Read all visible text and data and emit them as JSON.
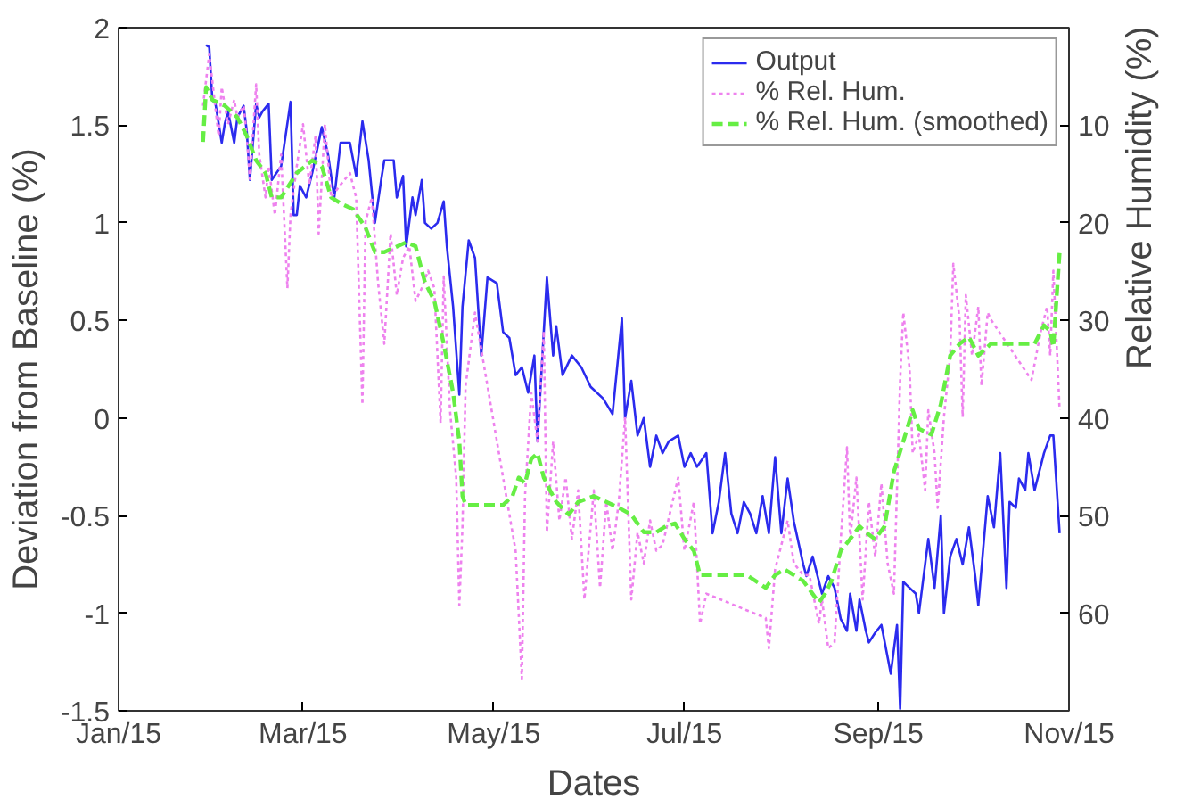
{
  "chart_data": {
    "type": "line",
    "xlabel": "Dates",
    "ylabel": "Deviation from Baseline (%)",
    "y2label": "Relative Humidity (%)",
    "xlim": [
      "2015-01-01",
      "2015-11-01"
    ],
    "xticks": [
      {
        "value": "2015-01-01",
        "label": "Jan/15"
      },
      {
        "value": "2015-03-01",
        "label": "Mar/15"
      },
      {
        "value": "2015-05-01",
        "label": "May/15"
      },
      {
        "value": "2015-07-01",
        "label": "Jul/15"
      },
      {
        "value": "2015-09-01",
        "label": "Sep/15"
      },
      {
        "value": "2015-11-01",
        "label": "Nov/15"
      }
    ],
    "ylim": [
      -1.5,
      2
    ],
    "yticks": [
      -1.5,
      -1,
      -0.5,
      0,
      0.5,
      1,
      1.5,
      2
    ],
    "y2lim": [
      70,
      0
    ],
    "y2ticks": [
      10,
      20,
      30,
      40,
      50,
      60
    ],
    "grid": false,
    "legend": "top right",
    "series": [
      {
        "name": "Output",
        "color": "#2b2bee",
        "line_style": "solid",
        "x": [
          "2015-01-29",
          "2015-01-30",
          "2015-01-31",
          "2015-02-01",
          "2015-02-03",
          "2015-02-04",
          "2015-02-05",
          "2015-02-07",
          "2015-02-08",
          "2015-02-10",
          "2015-02-11",
          "2015-02-12",
          "2015-02-14",
          "2015-02-15",
          "2015-02-16",
          "2015-02-18",
          "2015-02-19",
          "2015-02-22",
          "2015-02-25",
          "2015-02-26",
          "2015-02-27",
          "2015-02-28",
          "2015-03-02",
          "2015-03-04",
          "2015-03-07",
          "2015-03-09",
          "2015-03-11",
          "2015-03-13",
          "2015-03-16",
          "2015-03-18",
          "2015-03-20",
          "2015-03-22",
          "2015-03-24",
          "2015-03-26",
          "2015-03-27",
          "2015-03-30",
          "2015-03-31",
          "2015-04-02",
          "2015-04-03",
          "2015-04-05",
          "2015-04-06",
          "2015-04-08",
          "2015-04-09",
          "2015-04-11",
          "2015-04-13",
          "2015-04-15",
          "2015-04-16",
          "2015-04-18",
          "2015-04-20",
          "2015-04-21",
          "2015-04-23",
          "2015-04-25",
          "2015-04-27",
          "2015-04-29",
          "2015-05-02",
          "2015-05-04",
          "2015-05-06",
          "2015-05-08",
          "2015-05-10",
          "2015-05-12",
          "2015-05-14",
          "2015-05-15",
          "2015-05-17",
          "2015-05-18",
          "2015-05-20",
          "2015-05-21",
          "2015-05-23",
          "2015-05-26",
          "2015-05-29",
          "2015-06-01",
          "2015-06-05",
          "2015-06-08",
          "2015-06-11",
          "2015-06-12",
          "2015-06-14",
          "2015-06-16",
          "2015-06-18",
          "2015-06-20",
          "2015-06-22",
          "2015-06-24",
          "2015-06-26",
          "2015-06-29",
          "2015-07-01",
          "2015-07-03",
          "2015-07-05",
          "2015-07-08",
          "2015-07-10",
          "2015-07-12",
          "2015-07-14",
          "2015-07-16",
          "2015-07-18",
          "2015-07-20",
          "2015-07-22",
          "2015-07-24",
          "2015-07-26",
          "2015-07-28",
          "2015-07-30",
          "2015-08-01",
          "2015-08-03",
          "2015-08-05",
          "2015-08-08",
          "2015-08-09",
          "2015-08-11",
          "2015-08-14",
          "2015-08-16",
          "2015-08-18",
          "2015-08-20",
          "2015-08-22",
          "2015-08-23",
          "2015-08-25",
          "2015-08-26",
          "2015-08-28",
          "2015-08-29",
          "2015-08-31",
          "2015-09-02",
          "2015-09-05",
          "2015-09-07",
          "2015-09-08",
          "2015-09-09",
          "2015-09-11",
          "2015-09-13",
          "2015-09-14",
          "2015-09-17",
          "2015-09-19",
          "2015-09-21",
          "2015-09-22",
          "2015-09-24",
          "2015-09-26",
          "2015-09-28",
          "2015-09-30",
          "2015-10-02",
          "2015-10-03",
          "2015-10-06",
          "2015-10-08",
          "2015-10-10",
          "2015-10-12",
          "2015-10-13",
          "2015-10-15",
          "2015-10-16",
          "2015-10-18",
          "2015-10-19",
          "2015-10-21",
          "2015-10-24",
          "2015-10-26",
          "2015-10-27",
          "2015-10-29"
        ],
        "values": [
          1.91,
          1.9,
          1.63,
          1.61,
          1.41,
          1.51,
          1.57,
          1.41,
          1.54,
          1.6,
          1.47,
          1.22,
          1.61,
          1.54,
          1.57,
          1.61,
          1.22,
          1.29,
          1.62,
          1.04,
          1.04,
          1.19,
          1.13,
          1.26,
          1.49,
          1.35,
          1.13,
          1.41,
          1.41,
          1.24,
          1.52,
          1.32,
          1.0,
          1.22,
          1.32,
          1.32,
          1.13,
          1.24,
          0.88,
          1.13,
          1.04,
          1.22,
          1.0,
          0.97,
          1.0,
          1.11,
          0.88,
          0.57,
          0.12,
          0.57,
          0.91,
          0.82,
          0.32,
          0.72,
          0.69,
          0.44,
          0.41,
          0.22,
          0.26,
          0.13,
          0.32,
          -0.12,
          0.44,
          0.72,
          0.32,
          0.47,
          0.22,
          0.32,
          0.26,
          0.16,
          0.1,
          0.02,
          0.51,
          0.0,
          0.19,
          -0.09,
          0.0,
          -0.25,
          -0.09,
          -0.18,
          -0.12,
          -0.09,
          -0.25,
          -0.18,
          -0.25,
          -0.18,
          -0.59,
          -0.43,
          -0.18,
          -0.49,
          -0.59,
          -0.43,
          -0.49,
          -0.59,
          -0.4,
          -0.59,
          -0.2,
          -0.59,
          -0.31,
          -0.53,
          -0.75,
          -0.81,
          -0.71,
          -0.9,
          -0.81,
          -0.87,
          -1.03,
          -1.09,
          -0.9,
          -1.09,
          -0.93,
          -1.09,
          -1.15,
          -1.1,
          -1.06,
          -1.31,
          -1.06,
          -1.49,
          -0.84,
          -0.87,
          -0.9,
          -1.0,
          -0.62,
          -0.87,
          -0.5,
          -1.0,
          -0.71,
          -0.62,
          -0.75,
          -0.56,
          -0.81,
          -0.96,
          -0.4,
          -0.56,
          -0.18,
          -0.87,
          -0.43,
          -0.46,
          -0.31,
          -0.37,
          -0.18,
          -0.37,
          -0.18,
          -0.09,
          -0.09,
          -0.59
        ]
      },
      {
        "name": "% Rel. Hum.",
        "color": "#ee82ee",
        "line_style": "dotted",
        "axis": "y2",
        "x": [
          "2015-01-28",
          "2015-01-30",
          "2015-01-31",
          "2015-02-02",
          "2015-02-03",
          "2015-02-05",
          "2015-02-07",
          "2015-02-08",
          "2015-02-10",
          "2015-02-11",
          "2015-02-12",
          "2015-02-14",
          "2015-02-15",
          "2015-02-17",
          "2015-02-18",
          "2015-02-20",
          "2015-02-22",
          "2015-02-24",
          "2015-02-25",
          "2015-02-27",
          "2015-03-01",
          "2015-03-03",
          "2015-03-05",
          "2015-03-06",
          "2015-03-08",
          "2015-03-10",
          "2015-03-13",
          "2015-03-16",
          "2015-03-18",
          "2015-03-20",
          "2015-03-21",
          "2015-03-23",
          "2015-03-25",
          "2015-03-27",
          "2015-03-29",
          "2015-03-31",
          "2015-04-02",
          "2015-04-04",
          "2015-04-06",
          "2015-04-08",
          "2015-04-10",
          "2015-04-12",
          "2015-04-14",
          "2015-04-15",
          "2015-04-17",
          "2015-04-19",
          "2015-04-20",
          "2015-04-21",
          "2015-04-22",
          "2015-04-24",
          "2015-04-25",
          "2015-05-05",
          "2015-05-08",
          "2015-05-10",
          "2015-05-11",
          "2015-05-13",
          "2015-05-15",
          "2015-05-17",
          "2015-05-18",
          "2015-05-20",
          "2015-05-22",
          "2015-05-24",
          "2015-05-26",
          "2015-05-28",
          "2015-05-30",
          "2015-06-02",
          "2015-06-04",
          "2015-06-06",
          "2015-06-08",
          "2015-06-10",
          "2015-06-12",
          "2015-06-14",
          "2015-06-16",
          "2015-06-18",
          "2015-06-20",
          "2015-06-22",
          "2015-06-24",
          "2015-06-29",
          "2015-07-01",
          "2015-07-04",
          "2015-07-06",
          "2015-07-08",
          "2015-07-27",
          "2015-07-28",
          "2015-07-30",
          "2015-08-01",
          "2015-08-03",
          "2015-08-05",
          "2015-08-08",
          "2015-08-10",
          "2015-08-13",
          "2015-08-14",
          "2015-08-16",
          "2015-08-18",
          "2015-08-20",
          "2015-08-22",
          "2015-08-23",
          "2015-08-25",
          "2015-08-27",
          "2015-08-29",
          "2015-08-31",
          "2015-09-02",
          "2015-09-04",
          "2015-09-06",
          "2015-09-08",
          "2015-09-09",
          "2015-09-11",
          "2015-09-12",
          "2015-09-14",
          "2015-09-16",
          "2015-09-17",
          "2015-09-19",
          "2015-09-20",
          "2015-09-22",
          "2015-09-24",
          "2015-09-25",
          "2015-09-27",
          "2015-09-28",
          "2015-09-29",
          "2015-10-01",
          "2015-10-03",
          "2015-10-04",
          "2015-10-06",
          "2015-10-07",
          "2015-10-20",
          "2015-10-23",
          "2015-10-25",
          "2015-10-26",
          "2015-10-27",
          "2015-10-29"
        ],
        "values": [
          8.0,
          2.7,
          5.5,
          11.1,
          6.1,
          9.9,
          7.4,
          9.2,
          8.0,
          11.1,
          15.5,
          5.8,
          13.0,
          17.4,
          14.2,
          19.2,
          13.0,
          26.7,
          19.2,
          14.2,
          9.9,
          16.1,
          11.1,
          21.1,
          9.9,
          17.4,
          16.1,
          14.9,
          17.4,
          38.6,
          19.9,
          17.4,
          26.1,
          32.4,
          21.1,
          27.4,
          23.6,
          22.4,
          28.0,
          26.7,
          24.9,
          26.7,
          40.5,
          25.5,
          39.2,
          46.1,
          59.2,
          51.1,
          36.7,
          31.7,
          29.2,
          48.0,
          53.6,
          66.7,
          48.0,
          37.4,
          42.4,
          31.1,
          51.7,
          42.4,
          50.5,
          46.1,
          52.4,
          47.4,
          58.6,
          47.4,
          57.4,
          48.6,
          53.6,
          48.6,
          39.9,
          58.6,
          51.7,
          54.9,
          50.5,
          53.6,
          53.0,
          46.1,
          53.6,
          48.6,
          61.1,
          58.0,
          60.5,
          63.6,
          55.5,
          53.0,
          50.5,
          54.9,
          56.1,
          56.1,
          61.1,
          58.6,
          63.6,
          63.0,
          52.4,
          43.0,
          52.4,
          46.1,
          58.6,
          48.6,
          54.2,
          46.7,
          54.9,
          58.0,
          36.1,
          29.2,
          34.9,
          43.6,
          41.7,
          47.4,
          39.2,
          43.6,
          49.2,
          39.9,
          33.6,
          24.2,
          29.9,
          39.9,
          27.4,
          33.6,
          28.6,
          36.7,
          29.2,
          29.9,
          36.1,
          31.1,
          28.6,
          33.6,
          24.9,
          39.2
        ]
      },
      {
        "name": "% Rel. Hum. (smoothed)",
        "color": "#66ee44",
        "line_style": "dashed",
        "axis": "y2",
        "x": [
          "2015-01-28",
          "2015-01-29",
          "2015-01-31",
          "2015-02-04",
          "2015-02-08",
          "2015-02-11",
          "2015-02-14",
          "2015-02-17",
          "2015-02-19",
          "2015-02-22",
          "2015-02-27",
          "2015-03-04",
          "2015-03-07",
          "2015-03-10",
          "2015-03-13",
          "2015-03-17",
          "2015-03-21",
          "2015-03-24",
          "2015-03-27",
          "2015-04-03",
          "2015-04-06",
          "2015-04-09",
          "2015-04-12",
          "2015-04-15",
          "2015-04-18",
          "2015-04-20",
          "2015-04-21",
          "2015-04-22",
          "2015-05-04",
          "2015-05-07",
          "2015-05-09",
          "2015-05-11",
          "2015-05-13",
          "2015-05-15",
          "2015-05-17",
          "2015-05-19",
          "2015-05-21",
          "2015-05-25",
          "2015-05-28",
          "2015-06-02",
          "2015-06-06",
          "2015-06-10",
          "2015-06-14",
          "2015-06-18",
          "2015-06-22",
          "2015-06-25",
          "2015-06-28",
          "2015-07-01",
          "2015-07-04",
          "2015-07-06",
          "2015-07-11",
          "2015-07-21",
          "2015-07-27",
          "2015-07-30",
          "2015-08-02",
          "2015-08-05",
          "2015-08-08",
          "2015-08-13",
          "2015-08-15",
          "2015-08-17",
          "2015-08-20",
          "2015-08-23",
          "2015-08-26",
          "2015-08-28",
          "2015-08-31",
          "2015-09-03",
          "2015-09-06",
          "2015-09-09",
          "2015-09-12",
          "2015-09-14",
          "2015-09-18",
          "2015-09-21",
          "2015-09-24",
          "2015-09-27",
          "2015-09-30",
          "2015-10-03",
          "2015-10-07",
          "2015-10-12",
          "2015-10-21",
          "2015-10-24",
          "2015-10-26",
          "2015-10-27",
          "2015-10-29"
        ],
        "values": [
          11.7,
          6.1,
          7.4,
          8.0,
          9.2,
          11.1,
          13.6,
          14.9,
          17.4,
          17.4,
          14.9,
          13.6,
          14.2,
          17.4,
          18.0,
          18.6,
          20.5,
          23.0,
          23.0,
          22.0,
          22.4,
          26.1,
          28.0,
          32.4,
          37.4,
          42.4,
          48.0,
          48.9,
          48.9,
          48.0,
          46.1,
          46.7,
          44.2,
          43.6,
          46.1,
          47.4,
          48.6,
          49.9,
          48.6,
          48.0,
          48.6,
          49.2,
          49.9,
          51.7,
          51.7,
          51.1,
          50.8,
          52.4,
          53.6,
          56.1,
          56.1,
          56.1,
          57.4,
          56.1,
          55.5,
          56.1,
          56.7,
          58.9,
          58.0,
          56.7,
          53.6,
          52.4,
          51.1,
          51.7,
          52.4,
          51.1,
          45.5,
          42.4,
          39.2,
          41.1,
          41.7,
          38.6,
          33.6,
          32.4,
          31.7,
          33.6,
          32.4,
          32.4,
          32.4,
          30.5,
          31.1,
          32.7,
          23.0
        ]
      }
    ]
  }
}
